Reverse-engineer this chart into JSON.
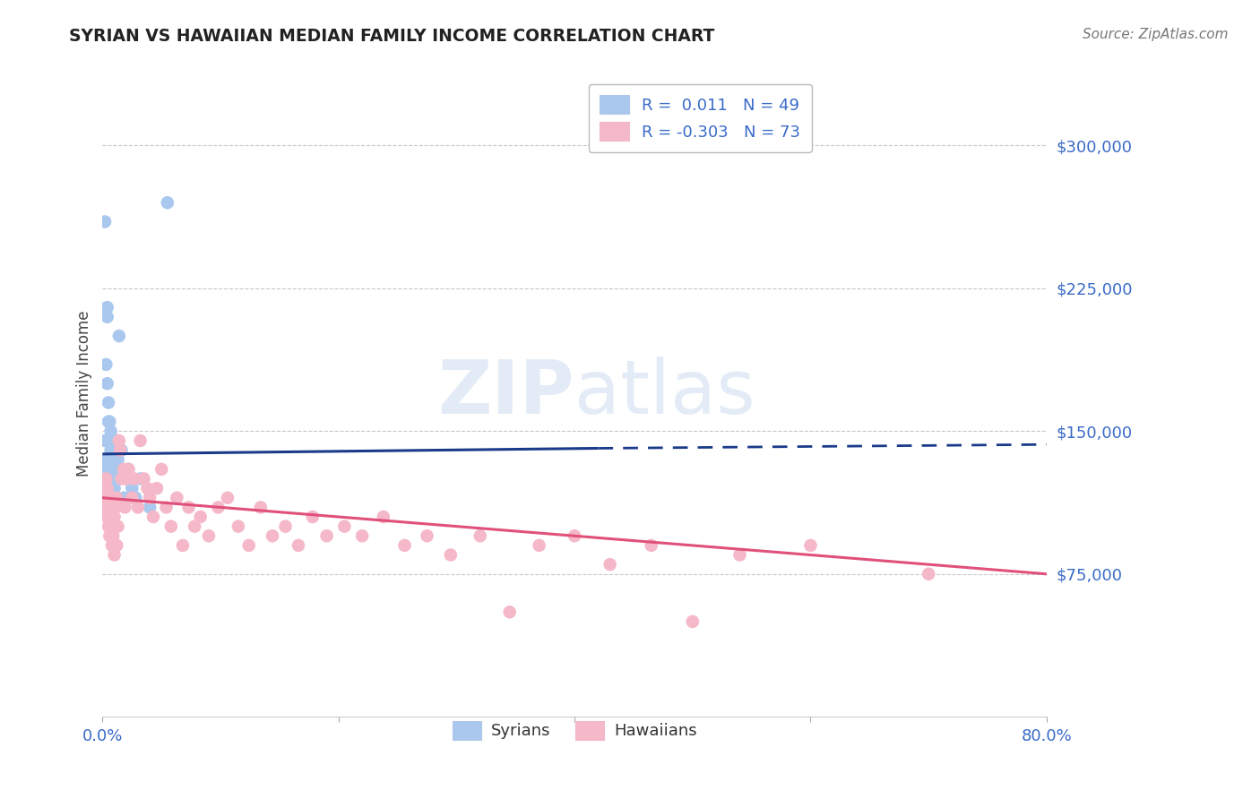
{
  "title": "SYRIAN VS HAWAIIAN MEDIAN FAMILY INCOME CORRELATION CHART",
  "source": "Source: ZipAtlas.com",
  "ylabel": "Median Family Income",
  "xlim": [
    0.0,
    0.8
  ],
  "ylim": [
    0,
    340000
  ],
  "yticks": [
    75000,
    150000,
    225000,
    300000
  ],
  "ytick_labels": [
    "$75,000",
    "$150,000",
    "$225,000",
    "$300,000"
  ],
  "xticks": [
    0.0,
    0.2,
    0.4,
    0.6,
    0.8
  ],
  "xtick_labels": [
    "0.0%",
    "",
    "",
    "",
    "80.0%"
  ],
  "grid_color": "#c8c8c8",
  "background_color": "#ffffff",
  "syrians": {
    "label": "Syrians",
    "R": 0.011,
    "N": 49,
    "dot_color": "#aac8ee",
    "line_color": "#1a3a8a",
    "line_solid_end": 0.42,
    "x": [
      0.001,
      0.001,
      0.002,
      0.002,
      0.003,
      0.003,
      0.003,
      0.004,
      0.004,
      0.004,
      0.004,
      0.004,
      0.005,
      0.005,
      0.005,
      0.005,
      0.005,
      0.006,
      0.006,
      0.006,
      0.006,
      0.007,
      0.007,
      0.007,
      0.007,
      0.008,
      0.008,
      0.008,
      0.008,
      0.009,
      0.009,
      0.009,
      0.01,
      0.01,
      0.01,
      0.011,
      0.012,
      0.013,
      0.014,
      0.015,
      0.016,
      0.018,
      0.02,
      0.022,
      0.025,
      0.028,
      0.032,
      0.04,
      0.055
    ],
    "y": [
      135000,
      120000,
      260000,
      145000,
      135000,
      185000,
      125000,
      215000,
      210000,
      175000,
      145000,
      130000,
      165000,
      155000,
      145000,
      130000,
      120000,
      155000,
      145000,
      130000,
      125000,
      150000,
      140000,
      130000,
      120000,
      145000,
      135000,
      125000,
      115000,
      140000,
      130000,
      120000,
      140000,
      135000,
      120000,
      125000,
      145000,
      135000,
      200000,
      130000,
      140000,
      115000,
      125000,
      130000,
      120000,
      115000,
      125000,
      110000,
      270000
    ]
  },
  "hawaiians": {
    "label": "Hawaiians",
    "R": -0.303,
    "N": 73,
    "dot_color": "#f5b8c8",
    "line_color": "#e0507a",
    "x": [
      0.001,
      0.002,
      0.003,
      0.003,
      0.004,
      0.004,
      0.005,
      0.005,
      0.006,
      0.006,
      0.007,
      0.007,
      0.008,
      0.008,
      0.009,
      0.009,
      0.01,
      0.01,
      0.011,
      0.012,
      0.012,
      0.013,
      0.014,
      0.015,
      0.016,
      0.018,
      0.019,
      0.02,
      0.022,
      0.025,
      0.027,
      0.03,
      0.032,
      0.035,
      0.038,
      0.04,
      0.043,
      0.046,
      0.05,
      0.054,
      0.058,
      0.063,
      0.068,
      0.073,
      0.078,
      0.083,
      0.09,
      0.098,
      0.106,
      0.115,
      0.124,
      0.134,
      0.144,
      0.155,
      0.166,
      0.178,
      0.19,
      0.205,
      0.22,
      0.238,
      0.256,
      0.275,
      0.295,
      0.32,
      0.345,
      0.37,
      0.4,
      0.43,
      0.465,
      0.5,
      0.54,
      0.6,
      0.7
    ],
    "y": [
      120000,
      115000,
      110000,
      125000,
      120000,
      105000,
      115000,
      100000,
      110000,
      95000,
      115000,
      100000,
      110000,
      90000,
      115000,
      95000,
      105000,
      85000,
      110000,
      115000,
      90000,
      100000,
      145000,
      140000,
      125000,
      130000,
      110000,
      125000,
      130000,
      115000,
      125000,
      110000,
      145000,
      125000,
      120000,
      115000,
      105000,
      120000,
      130000,
      110000,
      100000,
      115000,
      90000,
      110000,
      100000,
      105000,
      95000,
      110000,
      115000,
      100000,
      90000,
      110000,
      95000,
      100000,
      90000,
      105000,
      95000,
      100000,
      95000,
      105000,
      90000,
      95000,
      85000,
      95000,
      55000,
      90000,
      95000,
      80000,
      90000,
      50000,
      85000,
      90000,
      75000
    ]
  },
  "watermark_zip": "ZIP",
  "watermark_atlas": "atlas"
}
